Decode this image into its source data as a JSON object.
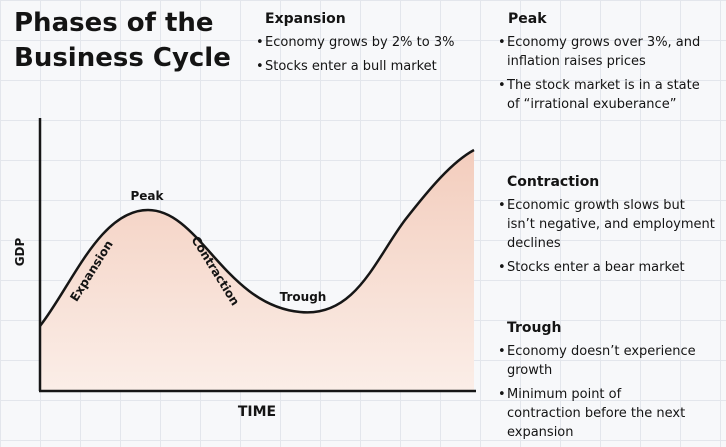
{
  "title": {
    "line1": "Phases of the",
    "line2": "Business Cycle"
  },
  "chart": {
    "y_axis_label": "GDP",
    "x_axis_label": "TIME",
    "phase_labels": {
      "expansion": "Expansion",
      "peak": "Peak",
      "contraction": "Contraction",
      "trough": "Trough"
    },
    "colors": {
      "fill_top": "#f3cdbd",
      "fill_bottom": "#fbeee8",
      "line": "#161616"
    }
  },
  "sections": {
    "expansion": {
      "heading": "Expansion",
      "bullets": [
        "Economy grows by 2% to 3%",
        "Stocks enter a bull market"
      ]
    },
    "peak": {
      "heading": "Peak",
      "bullets": [
        "Economy grows over 3%, and inflation raises prices",
        "The stock market is in a state of “irrational exuberance”"
      ]
    },
    "contraction": {
      "heading": "Contraction",
      "bullets": [
        "Economic growth slows but isn’t negative, and employment declines",
        "Stocks enter a bear market"
      ]
    },
    "trough": {
      "heading": "Trough",
      "bullets": [
        "Economy doesn’t experience growth",
        "Minimum point of contraction before the next expansion"
      ]
    }
  }
}
